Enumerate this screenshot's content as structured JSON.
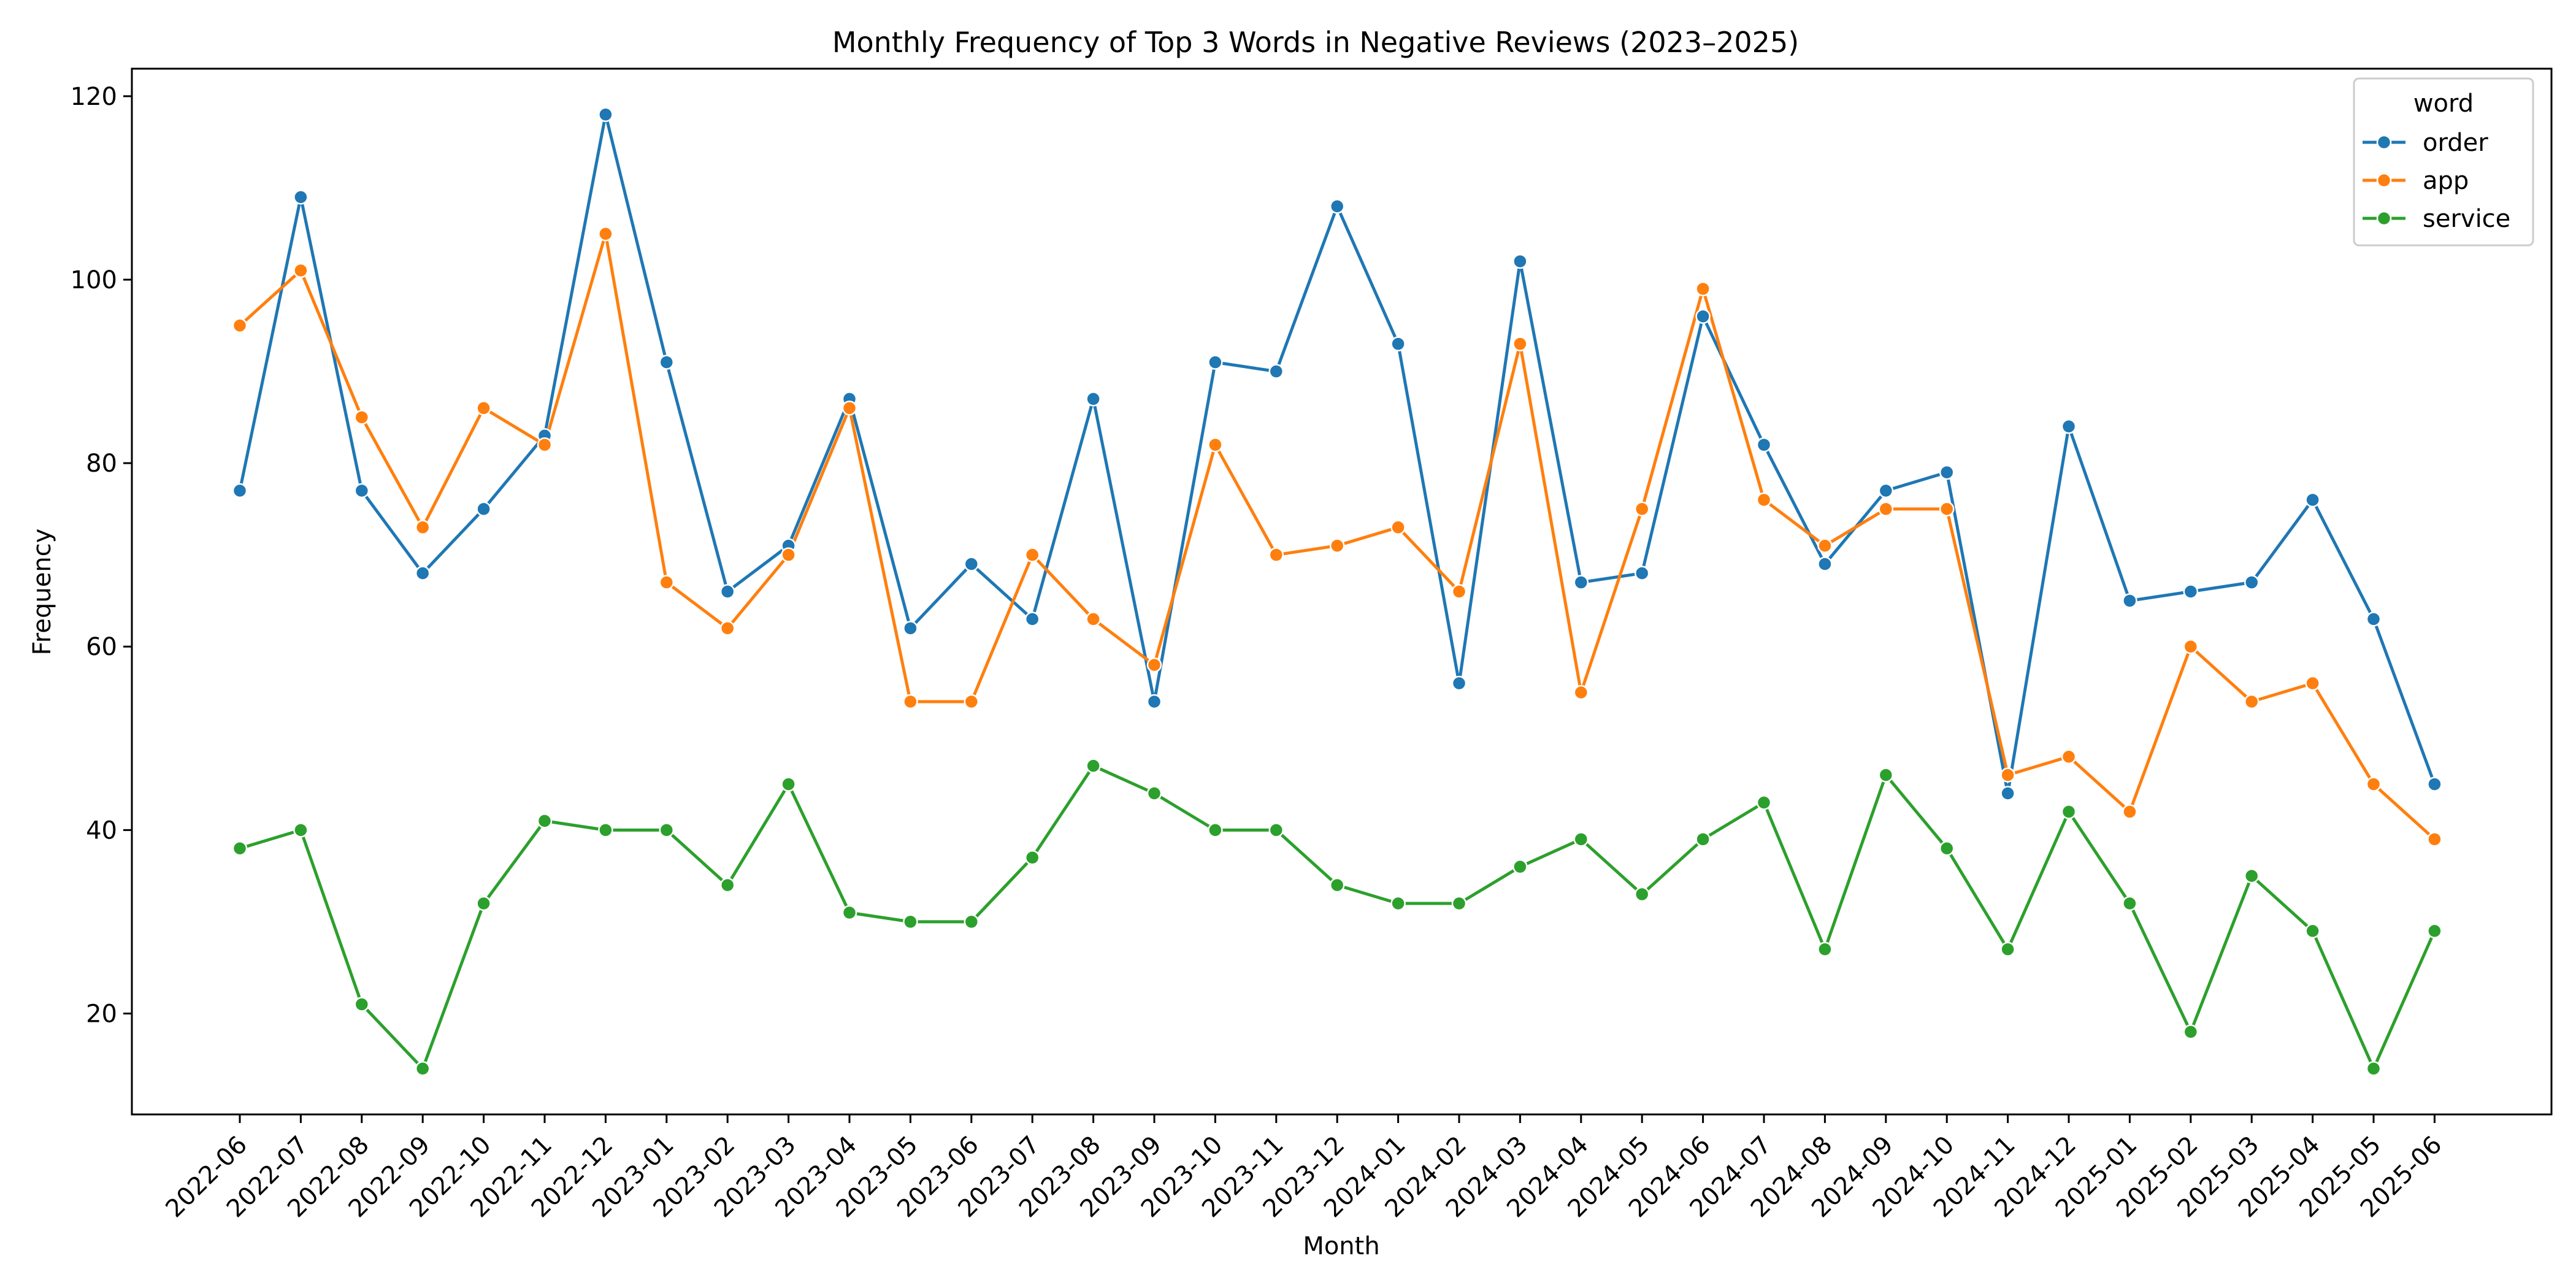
{
  "chart_data": {
    "type": "line",
    "title": "Monthly Frequency of Top 3 Words in Negative Reviews (2023–2025)",
    "xlabel": "Month",
    "ylabel": "Frequency",
    "ylim": [
      9,
      123
    ],
    "yticks": [
      20,
      40,
      60,
      80,
      100,
      120
    ],
    "grid": false,
    "legend": {
      "title": "word",
      "placement": "top-right"
    },
    "x": [
      "2022-06",
      "2022-07",
      "2022-08",
      "2022-09",
      "2022-10",
      "2022-11",
      "2022-12",
      "2023-01",
      "2023-02",
      "2023-03",
      "2023-04",
      "2023-05",
      "2023-06",
      "2023-07",
      "2023-08",
      "2023-09",
      "2023-10",
      "2023-11",
      "2023-12",
      "2024-01",
      "2024-02",
      "2024-03",
      "2024-04",
      "2024-05",
      "2024-06",
      "2024-07",
      "2024-08",
      "2024-09",
      "2024-10",
      "2024-11",
      "2024-12",
      "2025-01",
      "2025-02",
      "2025-03",
      "2025-04",
      "2025-05",
      "2025-06"
    ],
    "series": [
      {
        "name": "order",
        "color": "#1f77b4",
        "values": [
          77,
          109,
          77,
          68,
          75,
          83,
          118,
          91,
          66,
          71,
          87,
          62,
          69,
          63,
          87,
          54,
          91,
          90,
          108,
          93,
          56,
          102,
          67,
          68,
          96,
          82,
          69,
          77,
          79,
          44,
          84,
          65,
          66,
          67,
          76,
          63,
          45
        ]
      },
      {
        "name": "app",
        "color": "#ff7f0e",
        "values": [
          95,
          101,
          85,
          73,
          86,
          82,
          105,
          67,
          62,
          70,
          86,
          54,
          54,
          70,
          63,
          58,
          82,
          70,
          71,
          73,
          66,
          93,
          55,
          75,
          99,
          76,
          71,
          75,
          75,
          46,
          48,
          42,
          60,
          54,
          56,
          45,
          39
        ]
      },
      {
        "name": "service",
        "color": "#2ca02c",
        "values": [
          38,
          40,
          21,
          14,
          32,
          41,
          40,
          40,
          34,
          45,
          31,
          30,
          30,
          37,
          47,
          44,
          40,
          40,
          34,
          32,
          32,
          36,
          39,
          33,
          39,
          43,
          27,
          46,
          38,
          27,
          42,
          32,
          18,
          35,
          29,
          14,
          29
        ]
      }
    ]
  }
}
